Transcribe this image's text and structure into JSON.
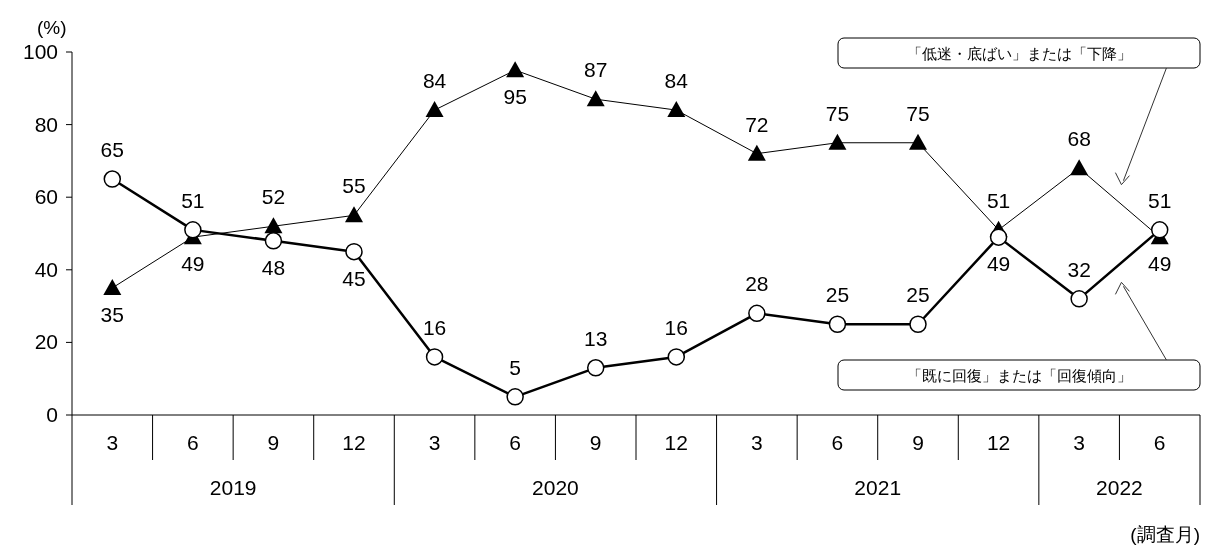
{
  "chart_data": {
    "type": "line",
    "ylabel": "(%)",
    "xlabel": "(調査月)",
    "categories": [
      "3",
      "6",
      "9",
      "12",
      "3",
      "6",
      "9",
      "12",
      "3",
      "6",
      "9",
      "12",
      "3",
      "6"
    ],
    "annotations": [
      "2019",
      "2020",
      "2021",
      "2022"
    ],
    "ylim": [
      0,
      100
    ],
    "yticks": [
      0,
      20,
      40,
      60,
      80,
      100
    ],
    "grid": false,
    "data_labels": true,
    "series": [
      {
        "name": "「低迷・底ばい」または「下降」",
        "color": "#000000",
        "marker": "triangle",
        "values": [
          35,
          49,
          52,
          55,
          84,
          95,
          87,
          84,
          72,
          75,
          75,
          51,
          68,
          49
        ]
      },
      {
        "name": "「既に回復」または「回復傾向」",
        "color": "#000000",
        "marker": "circle",
        "values": [
          65,
          51,
          48,
          45,
          16,
          5,
          13,
          16,
          28,
          25,
          25,
          49,
          32,
          51
        ]
      }
    ]
  }
}
